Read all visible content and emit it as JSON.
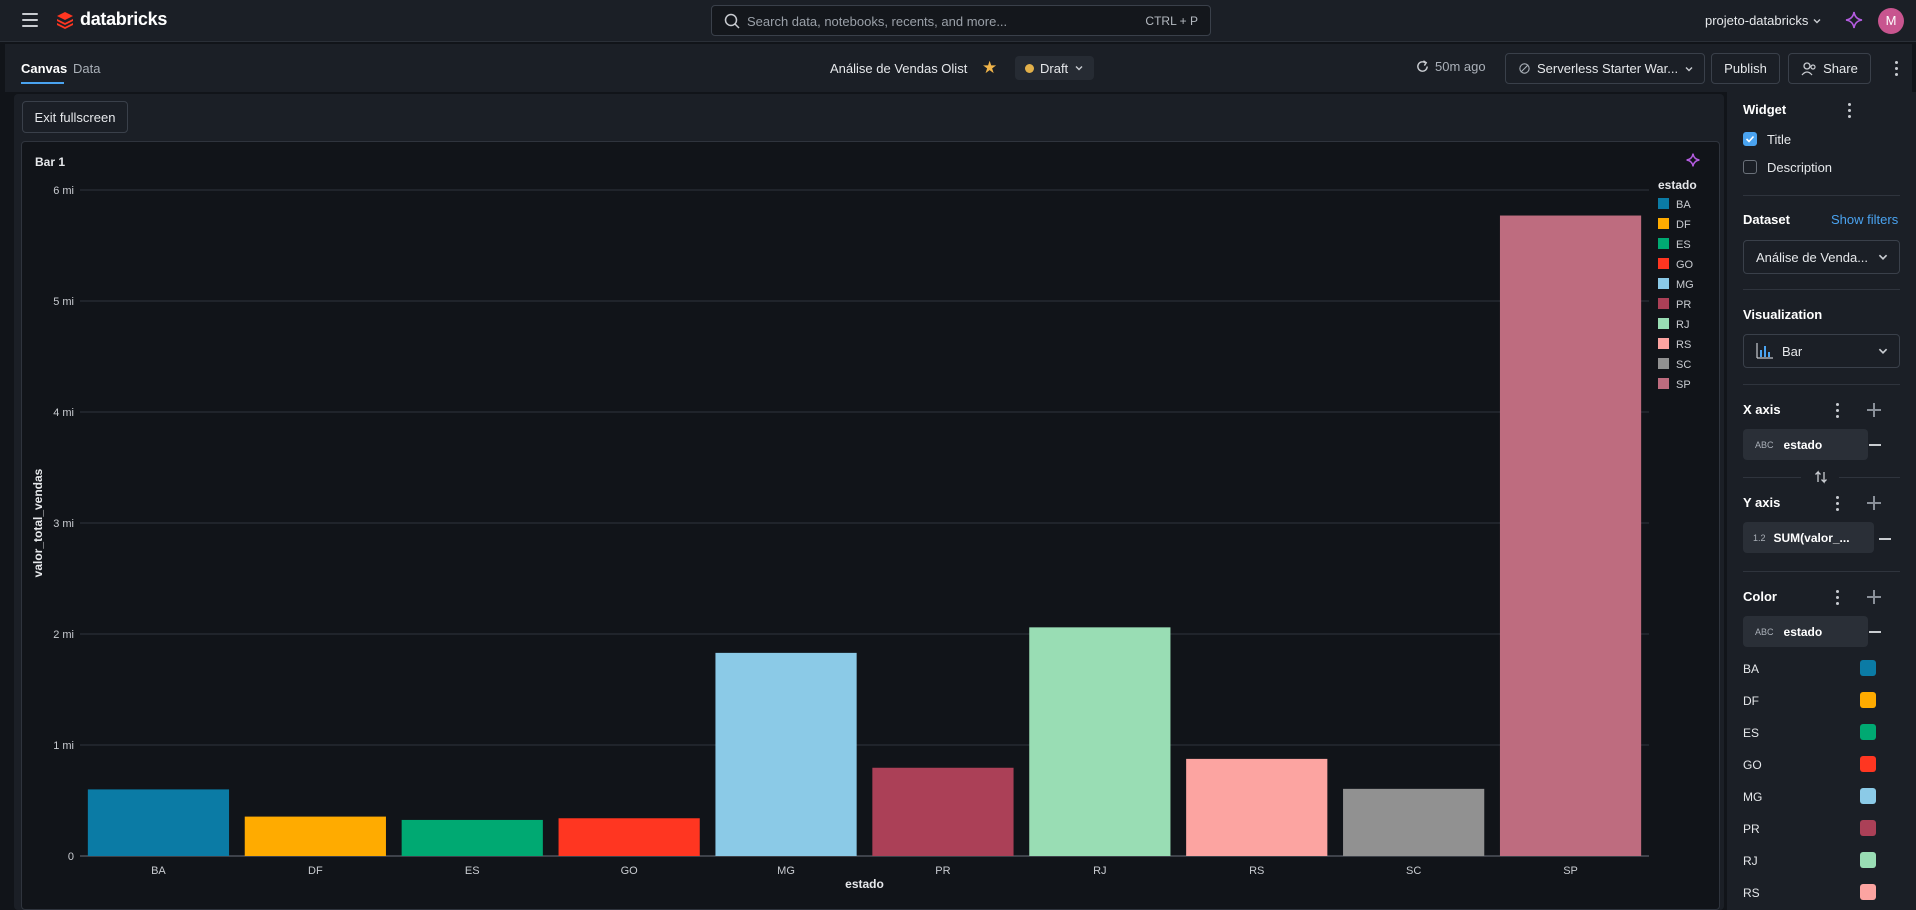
{
  "topbar": {
    "brand": "databricks",
    "search_placeholder": "Search data, notebooks, recents, and more...",
    "search_shortcut": "CTRL + P",
    "workspace": "projeto-databricks",
    "avatar_initial": "M"
  },
  "subheader": {
    "tabs": [
      {
        "label": "Canvas"
      },
      {
        "label": "Data"
      }
    ],
    "dashboard_title": "Análise de Vendas Olist",
    "status": "Draft",
    "refreshed": "50m ago",
    "warehouse": "Serverless Starter War...",
    "publish": "Publish",
    "share": "Share"
  },
  "canvas": {
    "exit_fullscreen": "Exit fullscreen",
    "widget_title": "Bar 1"
  },
  "panel": {
    "widget_heading": "Widget",
    "title_option": "Title",
    "title_checked": true,
    "description_option": "Description",
    "description_checked": false,
    "dataset_heading": "Dataset",
    "show_filters": "Show filters",
    "dataset_value": "Análise de Venda...",
    "visualization_heading": "Visualization",
    "visualization_value": "Bar",
    "x_axis_heading": "X axis",
    "x_field_type": "ABC",
    "x_field": "estado",
    "y_axis_heading": "Y axis",
    "y_field_type": "1.2",
    "y_field": "SUM(valor_...",
    "color_heading": "Color",
    "color_field_type": "ABC",
    "color_field": "estado",
    "color_map": [
      {
        "label": "BA",
        "color": "#0b7ba5"
      },
      {
        "label": "DF",
        "color": "#ffab00"
      },
      {
        "label": "ES",
        "color": "#00a972"
      },
      {
        "label": "GO",
        "color": "#ff3621"
      },
      {
        "label": "MG",
        "color": "#8bcae7"
      },
      {
        "label": "PR",
        "color": "#ab4057"
      },
      {
        "label": "RJ",
        "color": "#99ddb4"
      },
      {
        "label": "RS",
        "color": "#fca4a1"
      }
    ]
  },
  "chart_data": {
    "type": "bar",
    "title": "Bar 1",
    "xlabel": "estado",
    "ylabel": "valor_total_vendas",
    "categories": [
      "BA",
      "DF",
      "ES",
      "GO",
      "MG",
      "PR",
      "RJ",
      "RS",
      "SC",
      "SP"
    ],
    "values": [
      600000,
      355000,
      325000,
      340000,
      1830000,
      795000,
      2060000,
      875000,
      605000,
      5770000
    ],
    "colors": [
      "#0b7ba5",
      "#ffab00",
      "#00a972",
      "#ff3621",
      "#8bcae7",
      "#ab4057",
      "#99ddb4",
      "#fca4a1",
      "#919191",
      "#be6c7f"
    ],
    "ylim": [
      0,
      6000000
    ],
    "yticks": [
      0,
      1000000,
      2000000,
      3000000,
      4000000,
      5000000,
      6000000
    ],
    "ytick_labels": [
      "0",
      "1 mi",
      "2 mi",
      "3 mi",
      "4 mi",
      "5 mi",
      "6 mi"
    ],
    "grid": true,
    "legend_title": "estado",
    "legend_placement": "top-right"
  }
}
